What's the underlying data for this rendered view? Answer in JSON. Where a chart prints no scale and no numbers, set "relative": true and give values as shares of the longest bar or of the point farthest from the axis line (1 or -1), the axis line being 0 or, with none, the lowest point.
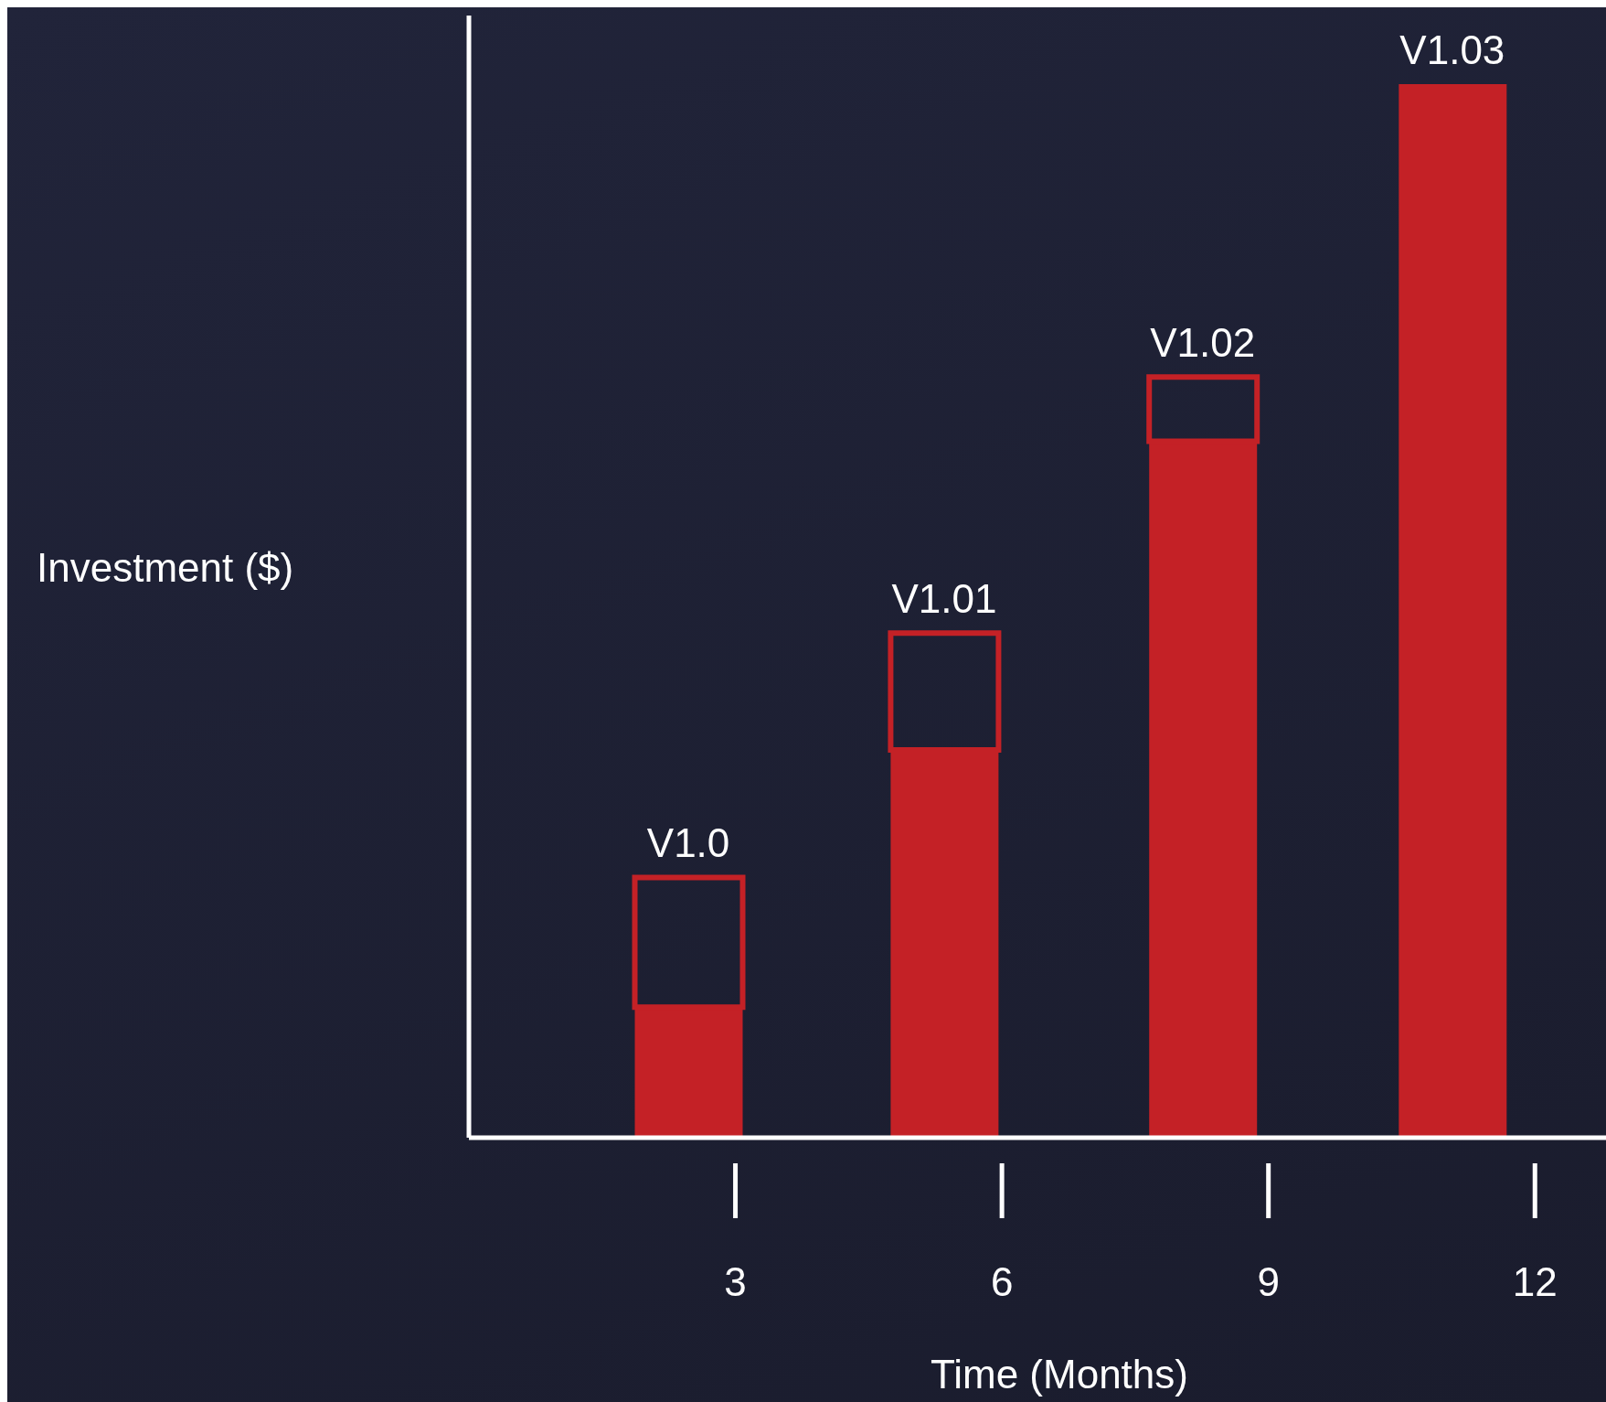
{
  "chart_data": {
    "type": "bar",
    "stacked": true,
    "relative": true,
    "xlabel": "Time (Months)",
    "ylabel": "Investment ($)",
    "x": [
      2.47,
      5.35,
      8.26,
      11.07
    ],
    "xlim": [
      0,
      12.8
    ],
    "xticks": [
      3,
      6,
      9,
      12
    ],
    "series": [
      {
        "color": "#c42126",
        "values": [
          0.124,
          0.368,
          0.661,
          1
        ]
      },
      {
        "color": "#c42126",
        "values": [
          0.123,
          0.111,
          0.061,
          0
        ]
      }
    ],
    "annotations": [
      {
        "text": "V1.0",
        "x": 2.47,
        "y": 0.247
      },
      {
        "text": "V1.01",
        "x": 5.35,
        "y": 0.479
      },
      {
        "text": "V1.02",
        "x": 8.26,
        "y": 0.722
      },
      {
        "text": "V1.03",
        "x": 11.07,
        "y": 1
      }
    ],
    "grid": false,
    "legend": false
  }
}
